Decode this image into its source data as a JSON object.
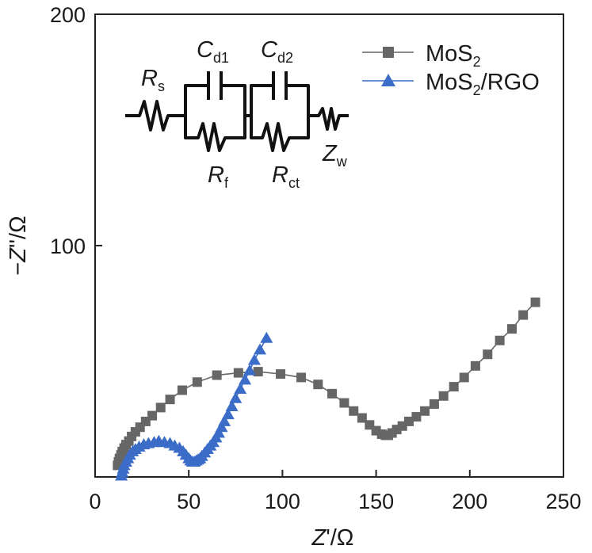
{
  "chart_data": {
    "type": "scatter",
    "title": "",
    "xlabel": {
      "main": "Z",
      "prime": "'",
      "unit": "/Ω"
    },
    "ylabel": {
      "sign": "−",
      "main": "Z",
      "prime": "''",
      "unit": "/Ω"
    },
    "xlim": [
      0,
      250
    ],
    "ylim": [
      0,
      200
    ],
    "xticks": [
      0,
      50,
      100,
      150,
      200,
      250
    ],
    "yticks": [
      100,
      200
    ],
    "legend_position": "top-right",
    "series": [
      {
        "name": "MoS2",
        "label_parts": [
          "MoS",
          "2",
          ""
        ],
        "color": "#666666",
        "marker": "square",
        "x": [
          12,
          12.5,
          13,
          13.8,
          14.5,
          15.5,
          16.5,
          18,
          19.5,
          21.5,
          24,
          27,
          30.5,
          35,
          40,
          46.5,
          54.5,
          65,
          76.5,
          87,
          99,
          110,
          119,
          126.5,
          133,
          138,
          142.5,
          146.5,
          150,
          153,
          155,
          156.5,
          158.5,
          161,
          164,
          167.5,
          171.5,
          176,
          181,
          186,
          191.5,
          197,
          203,
          209.5,
          216,
          222.5,
          228.5,
          235
        ],
        "y": [
          5,
          6.5,
          8,
          9.5,
          11,
          12.5,
          14,
          15.5,
          17.5,
          19.5,
          21.5,
          24,
          26.5,
          30,
          33.5,
          37.5,
          41,
          44,
          45,
          45.5,
          44.5,
          43,
          40,
          36,
          32,
          28.5,
          25.5,
          22.5,
          20,
          18.5,
          18,
          18,
          19,
          20.5,
          22,
          24,
          26,
          28.5,
          31.5,
          35,
          39,
          43,
          48,
          53,
          59,
          64,
          70,
          75.5
        ]
      },
      {
        "name": "MoS2/RGO",
        "label_parts": [
          "MoS",
          "2",
          "/RGO"
        ],
        "color": "#3a6cc8",
        "marker": "triangle",
        "x": [
          14,
          14.5,
          15,
          15.5,
          16.5,
          17.5,
          18.5,
          20,
          21.5,
          23.5,
          26,
          28.5,
          31.5,
          34,
          37,
          40,
          42.5,
          45,
          47,
          48.5,
          50,
          51,
          52,
          53,
          54,
          55,
          56,
          57,
          58.5,
          60,
          61.5,
          63,
          64.5,
          66,
          67.5,
          69,
          71,
          73,
          75,
          77.5,
          80,
          82.5,
          85,
          88,
          91.5
        ],
        "y": [
          0.5,
          2,
          3.5,
          5,
          6.5,
          8,
          9.5,
          11,
          12,
          13,
          14,
          14.5,
          15,
          15.5,
          15,
          14.5,
          13.5,
          12.5,
          11,
          9.5,
          8,
          7,
          6.5,
          6.5,
          7,
          7.5,
          8,
          9,
          10.5,
          12,
          13.5,
          15,
          17,
          19,
          21.5,
          24,
          27,
          30.5,
          34,
          38,
          42,
          46,
          50.5,
          55,
          60
        ]
      }
    ]
  },
  "inset": {
    "rs": {
      "main": "R",
      "sub": "s"
    },
    "cd1": {
      "main": "C",
      "sub": "d1"
    },
    "cd2": {
      "main": "C",
      "sub": "d2"
    },
    "rf": {
      "main": "R",
      "sub": "f"
    },
    "rct": {
      "main": "R",
      "sub": "ct"
    },
    "zw": {
      "main": "Z",
      "sub": "w"
    }
  }
}
